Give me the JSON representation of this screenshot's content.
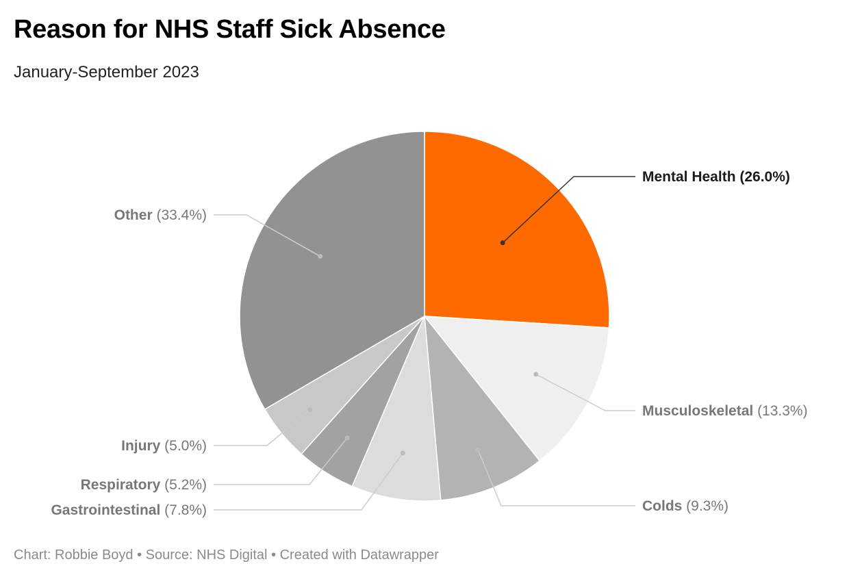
{
  "header": {
    "title": "Reason for NHS Staff Sick Absence",
    "subtitle": "January-September 2023"
  },
  "footer": {
    "text": "Chart: Robbie Boyd • Source: NHS Digital • Created with Datawrapper"
  },
  "chart_data": {
    "type": "pie",
    "unit": "%",
    "slices": [
      {
        "name": "Mental Health",
        "value": 26.0,
        "value_label": "(26.0%)",
        "color": "#ff6a00",
        "highlight": true
      },
      {
        "name": "Musculoskeletal",
        "value": 13.3,
        "value_label": "(13.3%)",
        "color": "#efefef"
      },
      {
        "name": "Colds",
        "value": 9.3,
        "value_label": "(9.3%)",
        "color": "#b3b3b3"
      },
      {
        "name": "Gastrointestinal",
        "value": 7.8,
        "value_label": "(7.8%)",
        "color": "#dcdcdc"
      },
      {
        "name": "Respiratory",
        "value": 5.2,
        "value_label": "(5.2%)",
        "color": "#a2a2a2"
      },
      {
        "name": "Injury",
        "value": 5.0,
        "value_label": "(5.0%)",
        "color": "#c8c8c8"
      },
      {
        "name": "Other",
        "value": 33.4,
        "value_label": "(33.4%)",
        "color": "#929292"
      }
    ],
    "label_color": "#777777",
    "highlight_label_color": "#1a1a1a"
  }
}
